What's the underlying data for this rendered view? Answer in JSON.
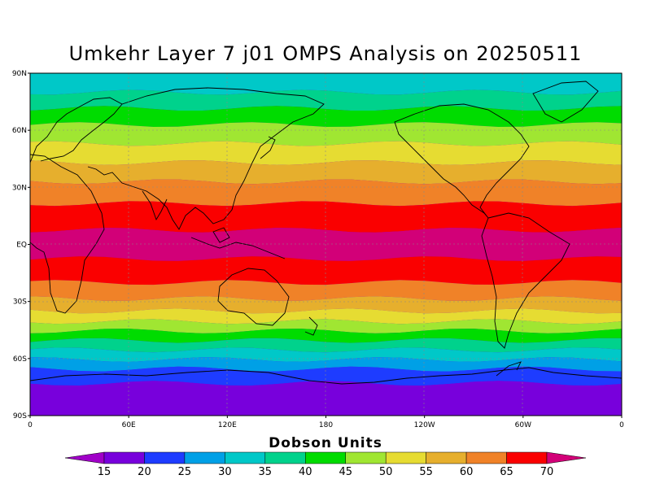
{
  "title": "Umkehr Layer 7 j01 OMPS Analysis on 20250511",
  "colorbar": {
    "title": "Dobson Units",
    "levels": [
      "15",
      "20",
      "25",
      "30",
      "35",
      "40",
      "45",
      "50",
      "55",
      "60",
      "65",
      "70"
    ],
    "colors": [
      "#a000c8",
      "#7800dc",
      "#1e3cff",
      "#00a0e6",
      "#00c8c8",
      "#00d28c",
      "#00dc00",
      "#a0e632",
      "#e6dc32",
      "#e6af2d",
      "#f08228",
      "#fa0000",
      "#d20078"
    ]
  },
  "axes": {
    "lon_labels": [
      "0",
      "60E",
      "120E",
      "180",
      "120W",
      "60W",
      "0"
    ],
    "lat_labels": [
      "90N",
      "60N",
      "30N",
      "EQ",
      "30S",
      "60S",
      "90S"
    ]
  },
  "chart_data": {
    "type": "heatmap",
    "title": "Umkehr Layer 7 j01 OMPS Analysis on 20250511",
    "units": "Dobson Units",
    "latitude_bands": [
      {
        "lat": 85,
        "value": 33
      },
      {
        "lat": 75,
        "value": 37
      },
      {
        "lat": 68,
        "value": 43
      },
      {
        "lat": 58,
        "value": 48
      },
      {
        "lat": 48,
        "value": 53
      },
      {
        "lat": 38,
        "value": 58
      },
      {
        "lat": 28,
        "value": 63
      },
      {
        "lat": 15,
        "value": 67
      },
      {
        "lat": 0,
        "value": 72
      },
      {
        "lat": -15,
        "value": 66
      },
      {
        "lat": -25,
        "value": 61
      },
      {
        "lat": -32,
        "value": 56
      },
      {
        "lat": -38,
        "value": 51
      },
      {
        "lat": -43,
        "value": 46
      },
      {
        "lat": -48,
        "value": 41
      },
      {
        "lat": -53,
        "value": 36
      },
      {
        "lat": -58,
        "value": 31
      },
      {
        "lat": -63,
        "value": 26
      },
      {
        "lat": -68,
        "value": 21
      },
      {
        "lat": -78,
        "value": 17
      }
    ],
    "xlim": [
      0,
      360
    ],
    "ylim": [
      -90,
      90
    ]
  }
}
